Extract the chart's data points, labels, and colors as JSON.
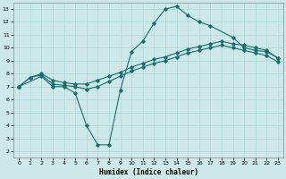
{
  "xlabel": "Humidex (Indice chaleur)",
  "bg_color": "#cce8e8",
  "line_color": "#1a6e6e",
  "grid_color": "#aad4d4",
  "xlim": [
    -0.5,
    23.5
  ],
  "ylim": [
    1.5,
    13.5
  ],
  "xticks": [
    0,
    1,
    2,
    3,
    4,
    5,
    6,
    7,
    8,
    9,
    10,
    11,
    12,
    13,
    14,
    15,
    16,
    17,
    18,
    19,
    20,
    21,
    22,
    23
  ],
  "yticks": [
    2,
    3,
    4,
    5,
    6,
    7,
    8,
    9,
    10,
    11,
    12,
    13
  ],
  "line1_x": [
    0,
    1,
    2,
    3,
    4,
    5,
    6,
    7,
    8,
    9,
    10,
    11,
    12,
    13,
    14,
    15,
    16,
    17,
    18,
    19,
    20,
    21,
    22,
    23
  ],
  "line1_y": [
    7.0,
    7.7,
    8.0,
    7.5,
    7.3,
    7.2,
    7.2,
    7.5,
    7.8,
    8.1,
    8.5,
    8.8,
    9.1,
    9.3,
    9.6,
    9.9,
    10.1,
    10.3,
    10.5,
    10.3,
    10.2,
    10.0,
    9.8,
    9.2
  ],
  "line2_x": [
    0,
    2,
    3,
    4,
    5,
    6,
    7,
    8,
    9,
    10,
    11,
    12,
    13,
    14,
    15,
    16,
    17,
    19,
    20,
    21,
    22,
    23
  ],
  "line2_y": [
    7.0,
    7.8,
    7.0,
    7.0,
    6.5,
    4.0,
    2.5,
    2.5,
    6.7,
    9.7,
    10.5,
    11.9,
    13.0,
    13.2,
    12.5,
    12.0,
    11.7,
    10.8,
    10.0,
    9.8,
    9.7,
    9.2
  ],
  "line3_x": [
    0,
    1,
    2,
    3,
    4,
    5,
    6,
    7,
    8,
    9,
    10,
    11,
    12,
    13,
    14,
    15,
    16,
    17,
    18,
    19,
    20,
    21,
    22,
    23
  ],
  "line3_y": [
    7.0,
    7.7,
    7.9,
    7.2,
    7.1,
    7.0,
    6.8,
    7.0,
    7.4,
    7.8,
    8.2,
    8.5,
    8.8,
    9.0,
    9.3,
    9.6,
    9.8,
    10.0,
    10.2,
    10.0,
    9.8,
    9.6,
    9.4,
    8.9
  ]
}
